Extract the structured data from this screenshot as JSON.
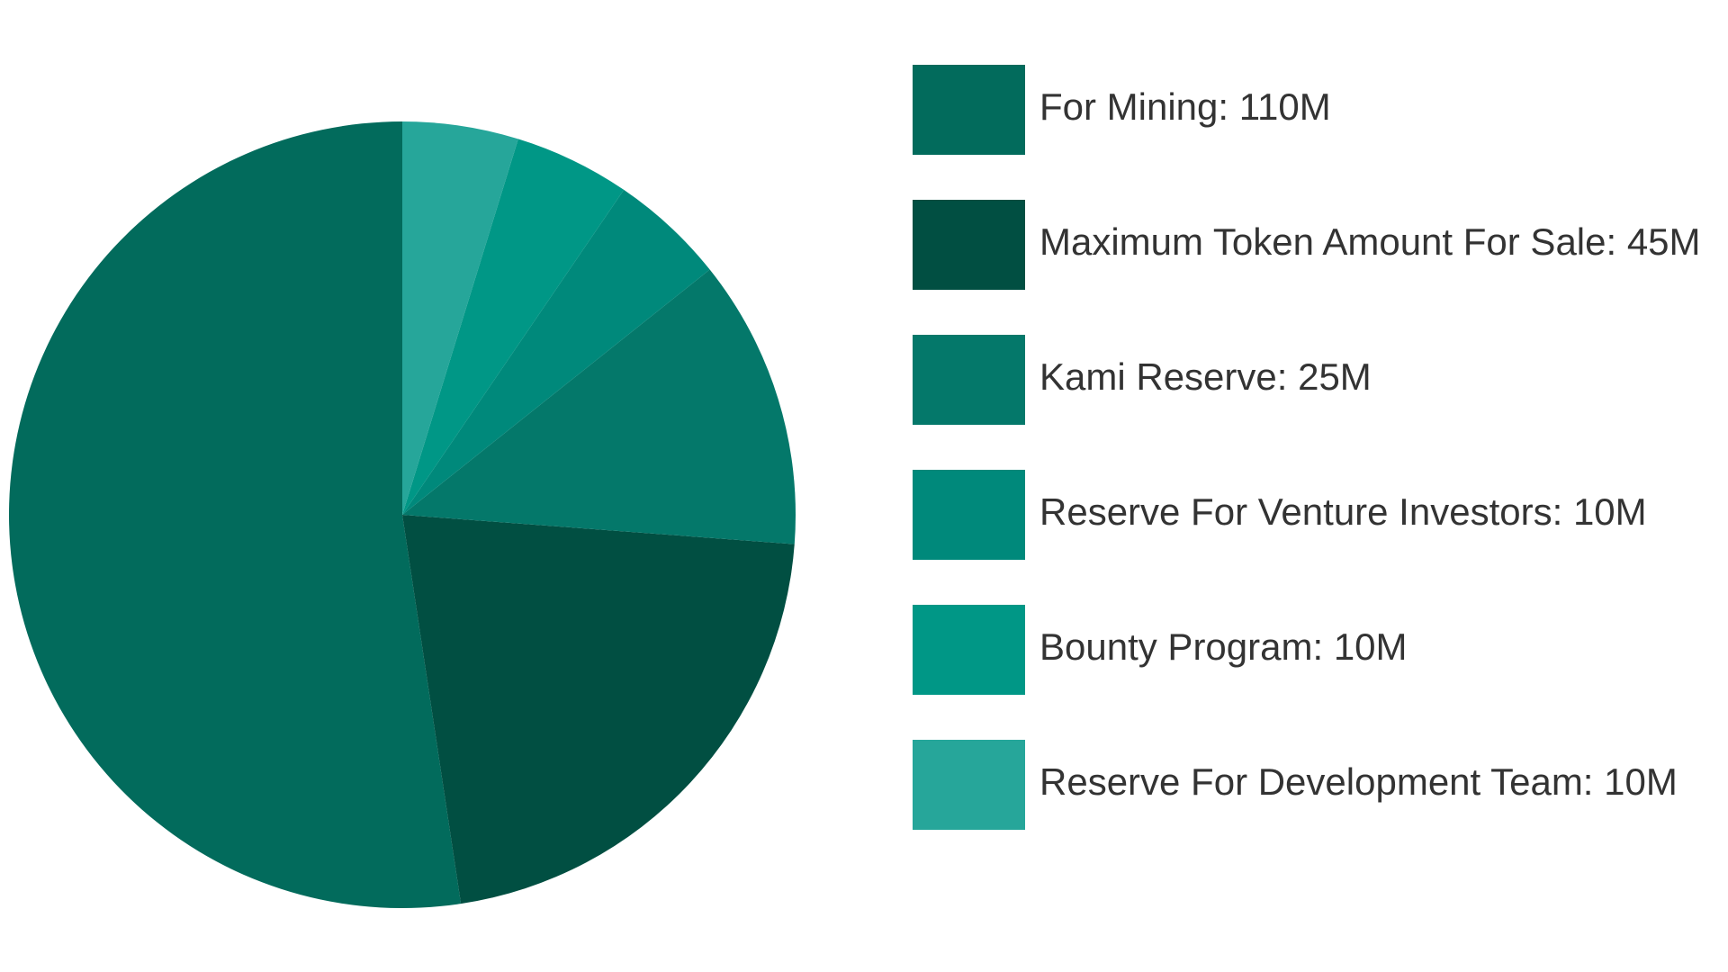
{
  "chart_data": {
    "type": "pie",
    "categories": [
      "For Mining:",
      "Maximum Token Amount For Sale:",
      "Kami Reserve:",
      "Reserve For Venture Investors:",
      "Bounty Program:",
      "Reserve For Development Team:"
    ],
    "values": [
      110,
      45,
      25,
      10,
      10,
      10
    ],
    "value_labels": [
      "110M",
      "45M",
      "25M",
      "10M",
      "10M",
      "10M"
    ],
    "colors": [
      "#026b5c",
      "#014f42",
      "#04786a",
      "#00897b",
      "#009786",
      "#26a69a"
    ],
    "direction": "counterclockwise",
    "start_angle": 0,
    "legend": "right"
  }
}
